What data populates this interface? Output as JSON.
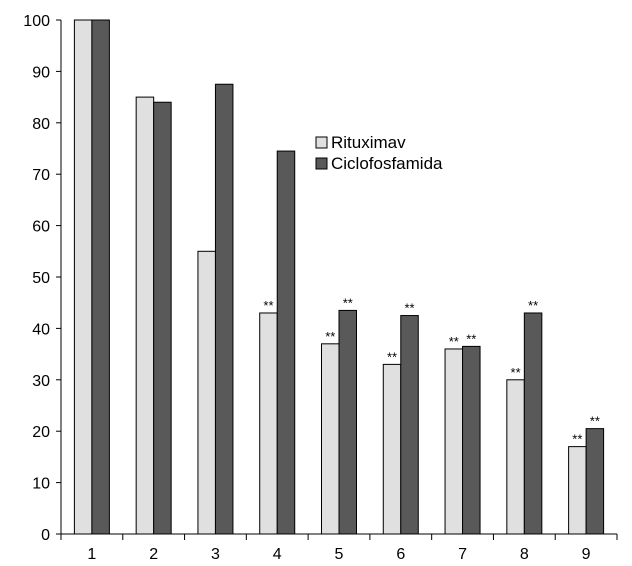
{
  "chart_data": {
    "type": "bar",
    "title": "",
    "xlabel": "",
    "ylabel": "",
    "categories": [
      "1",
      "2",
      "3",
      "4",
      "5",
      "6",
      "7",
      "8",
      "9"
    ],
    "ylim": [
      0,
      100
    ],
    "yticks": [
      0,
      10,
      20,
      30,
      40,
      50,
      60,
      70,
      80,
      90,
      100
    ],
    "grid": false,
    "legend_position": "upper-right-inside",
    "series": [
      {
        "name": "Rituximav",
        "color": "#e0e0e0",
        "values": [
          100,
          85,
          55,
          43,
          37,
          33,
          36,
          30,
          17
        ],
        "annotations": [
          "",
          "",
          "",
          "**",
          "**",
          "**",
          "**",
          "**",
          "**"
        ]
      },
      {
        "name": "Ciclofosfamida",
        "color": "#595959",
        "values": [
          100,
          84,
          87.5,
          74.5,
          43.5,
          42.5,
          36.5,
          43,
          20.5
        ],
        "annotations": [
          "",
          "",
          "",
          "",
          "**",
          "**",
          "**",
          "**",
          "**"
        ]
      }
    ]
  }
}
